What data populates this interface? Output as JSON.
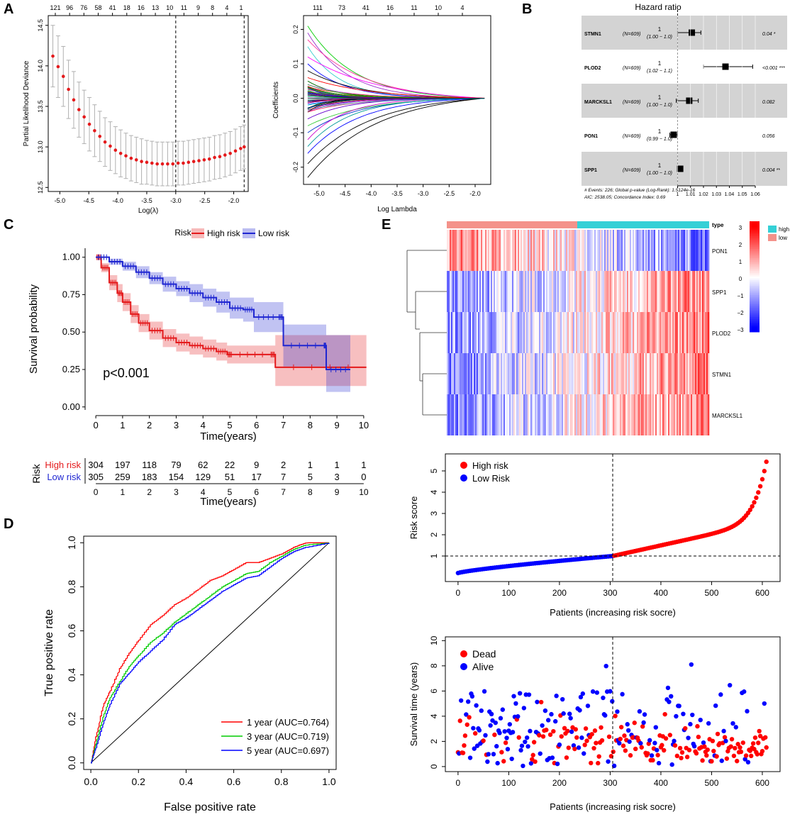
{
  "panels": {
    "A": "A",
    "B": "B",
    "C": "C",
    "D": "D",
    "E": "E"
  },
  "chart_data": [
    {
      "id": "A1",
      "type": "scatter",
      "title": "",
      "xlabel": "Log(λ)",
      "ylabel": "Partial Likelihood Deviance",
      "xlim": [
        -5.2,
        -1.75
      ],
      "ylim": [
        12.45,
        14.62
      ],
      "x_ticks": [
        "-5.0",
        "-4.5",
        "-4.0",
        "-3.5",
        "-3.0",
        "-2.5",
        "-2.0"
      ],
      "y_ticks": [
        "12.5",
        "13.0",
        "13.5",
        "14.0",
        "14.5"
      ],
      "top_ticks": [
        "121",
        "96",
        "76",
        "58",
        "41",
        "18",
        "16",
        "13",
        "10",
        "11",
        "9",
        "8",
        "4",
        "1"
      ],
      "vlines": [
        -3.0,
        -1.82
      ],
      "x": [
        -5.12,
        -5.03,
        -4.94,
        -4.85,
        -4.76,
        -4.67,
        -4.58,
        -4.49,
        -4.4,
        -4.31,
        -4.22,
        -4.13,
        -4.04,
        -3.95,
        -3.86,
        -3.77,
        -3.68,
        -3.59,
        -3.5,
        -3.41,
        -3.32,
        -3.23,
        -3.14,
        -3.05,
        -2.96,
        -2.87,
        -2.78,
        -2.69,
        -2.6,
        -2.51,
        -2.42,
        -2.33,
        -2.24,
        -2.15,
        -2.06,
        -1.97,
        -1.88,
        -1.82
      ],
      "values": [
        14.12,
        13.99,
        13.87,
        13.71,
        13.58,
        13.46,
        13.37,
        13.28,
        13.2,
        13.13,
        13.06,
        13.01,
        12.96,
        12.92,
        12.89,
        12.86,
        12.84,
        12.82,
        12.81,
        12.8,
        12.79,
        12.79,
        12.79,
        12.79,
        12.8,
        12.8,
        12.81,
        12.82,
        12.83,
        12.84,
        12.85,
        12.87,
        12.88,
        12.9,
        12.92,
        12.95,
        12.98,
        13.0
      ],
      "error": [
        0.38,
        0.38,
        0.37,
        0.36,
        0.35,
        0.34,
        0.33,
        0.33,
        0.32,
        0.31,
        0.3,
        0.3,
        0.29,
        0.29,
        0.28,
        0.28,
        0.28,
        0.28,
        0.27,
        0.27,
        0.27,
        0.27,
        0.27,
        0.27,
        0.27,
        0.27,
        0.27,
        0.27,
        0.27,
        0.27,
        0.27,
        0.27,
        0.27,
        0.27,
        0.27,
        0.27,
        0.27,
        0.27
      ],
      "color": "#e41a1c"
    },
    {
      "id": "A2",
      "type": "line",
      "xlabel": "Log Lambda",
      "ylabel": "Coefficients",
      "xlim": [
        -5.3,
        -1.7
      ],
      "ylim": [
        -0.25,
        0.24
      ],
      "x_ticks": [
        "-5.0",
        "-4.5",
        "-4.0",
        "-3.5",
        "-3.0",
        "-2.5",
        "-2.0"
      ],
      "y_ticks": [
        "-0.2",
        "-0.1",
        "0.0",
        "0.1",
        "0.2"
      ],
      "top_ticks": [
        "111",
        "73",
        "41",
        "16",
        "11",
        "10",
        "4"
      ],
      "x_end": -1.82,
      "series": [
        {
          "start": 0.21,
          "decay": 1.1,
          "color": "#00cc00"
        },
        {
          "start": 0.19,
          "decay": 1.3,
          "color": "#9933cc"
        },
        {
          "start": 0.17,
          "decay": 0.9,
          "color": "#ff3399"
        },
        {
          "start": 0.15,
          "decay": 1.6,
          "color": "#33cccc"
        },
        {
          "start": 0.12,
          "decay": 0.7,
          "color": "#ff00ff"
        },
        {
          "start": 0.1,
          "decay": 1.4,
          "color": "#0000ff"
        },
        {
          "start": 0.08,
          "decay": 1.0,
          "color": "#000000"
        },
        {
          "start": 0.06,
          "decay": 0.8,
          "color": "#ff0000"
        },
        {
          "start": 0.05,
          "decay": 1.8,
          "color": "#006600"
        },
        {
          "start": 0.04,
          "decay": 1.2,
          "color": "#cc66ff"
        },
        {
          "start": 0.03,
          "decay": 2.0,
          "color": "#ff9900"
        },
        {
          "start": 0.02,
          "decay": 1.5,
          "color": "#3366ff"
        },
        {
          "start": -0.02,
          "decay": 1.6,
          "color": "#00cccc"
        },
        {
          "start": -0.04,
          "decay": 1.1,
          "color": "#ff3366"
        },
        {
          "start": -0.06,
          "decay": 1.3,
          "color": "#6600cc"
        },
        {
          "start": -0.08,
          "decay": 0.9,
          "color": "#33cc33"
        },
        {
          "start": -0.1,
          "decay": 1.0,
          "color": "#0033cc"
        },
        {
          "start": -0.12,
          "decay": 1.4,
          "color": "#cc00cc"
        },
        {
          "start": -0.14,
          "decay": 1.2,
          "color": "#009999"
        },
        {
          "start": -0.16,
          "decay": 1.0,
          "color": "#0000ff"
        },
        {
          "start": -0.19,
          "decay": 0.8,
          "color": "#000000"
        },
        {
          "start": -0.23,
          "decay": 0.75,
          "color": "#000000"
        }
      ]
    },
    {
      "id": "B",
      "type": "table",
      "title": "Hazard ratio",
      "rows": [
        {
          "gene": "STMN1",
          "n": "(N=609)",
          "hr": "1",
          "ci": "(1.00 − 1.0)",
          "p": "0.04 *",
          "est": 1.011,
          "lo": 1.0,
          "hi": 1.018,
          "shade": true
        },
        {
          "gene": "PLOD2",
          "n": "(N=609)",
          "hr": "1",
          "ci": "(1.02 − 1.1)",
          "p": "<0.001 ***",
          "est": 1.037,
          "lo": 1.02,
          "hi": 1.058,
          "shade": false
        },
        {
          "gene": "MARCKSL1",
          "n": "(N=609)",
          "hr": "1",
          "ci": "(1.00 − 1.0)",
          "p": "0.082",
          "est": 1.009,
          "lo": 0.999,
          "hi": 1.016,
          "shade": true
        },
        {
          "gene": "PON1",
          "n": "(N=609)",
          "hr": "1",
          "ci": "(0.99 − 1.0)",
          "p": "0.056",
          "est": 0.997,
          "lo": 0.994,
          "hi": 1.0,
          "shade": false
        },
        {
          "gene": "SPP1",
          "n": "(N=609)",
          "hr": "1",
          "ci": "(1.00 − 1.0)",
          "p": "0.004 **",
          "est": 1.002,
          "lo": 1.001,
          "hi": 1.003,
          "shade": true
        }
      ],
      "x_ticks": [
        "1",
        "1.01",
        "1.02",
        "1.03",
        "1.04",
        "1.05",
        "1.06"
      ],
      "footer1": "# Events: 226; Global p-value (Log-Rank): 1.5124e-16",
      "footer2": "AIC: 2538.05; Concordance Index: 0.69"
    },
    {
      "id": "C",
      "type": "line",
      "title": "",
      "xlabel": "Time(years)",
      "ylabel": "Survival probability",
      "xlim": [
        -0.4,
        10.4
      ],
      "ylim": [
        -0.02,
        1.06
      ],
      "x_ticks": [
        "0",
        "1",
        "2",
        "3",
        "4",
        "5",
        "6",
        "7",
        "8",
        "9",
        "10"
      ],
      "y_ticks": [
        "0.00",
        "0.25",
        "0.50",
        "0.75",
        "1.00"
      ],
      "legend_title": "Risk",
      "legend": [
        "High risk",
        "Low risk"
      ],
      "annotation": "p<0.001",
      "series": [
        {
          "name": "High risk",
          "color": "#e41a1c",
          "x": [
            0,
            0.2,
            0.5,
            0.8,
            1,
            1.3,
            1.6,
            2,
            2.5,
            3,
            3.5,
            4,
            4.5,
            4.9,
            5.1,
            6.5,
            6.7,
            10.1
          ],
          "y": [
            1,
            0.93,
            0.83,
            0.76,
            0.7,
            0.62,
            0.56,
            0.51,
            0.46,
            0.43,
            0.41,
            0.39,
            0.37,
            0.35,
            0.35,
            0.35,
            0.265,
            0.265
          ],
          "lower": [
            1,
            0.9,
            0.78,
            0.7,
            0.64,
            0.56,
            0.5,
            0.45,
            0.4,
            0.37,
            0.35,
            0.33,
            0.31,
            0.29,
            0.29,
            0.29,
            0.14,
            0.14
          ],
          "upper": [
            1,
            0.96,
            0.88,
            0.82,
            0.76,
            0.68,
            0.62,
            0.57,
            0.52,
            0.49,
            0.47,
            0.45,
            0.43,
            0.41,
            0.41,
            0.41,
            0.48,
            0.48
          ]
        },
        {
          "name": "Low risk",
          "color": "#1f26d1",
          "x": [
            0,
            0.5,
            1,
            1.5,
            2,
            2.5,
            3,
            3.5,
            4,
            4.5,
            5,
            5.5,
            5.9,
            6.8,
            7.0,
            8.5,
            8.6,
            9.5
          ],
          "y": [
            1,
            0.97,
            0.94,
            0.9,
            0.86,
            0.82,
            0.79,
            0.76,
            0.73,
            0.7,
            0.66,
            0.65,
            0.6,
            0.6,
            0.41,
            0.41,
            0.25,
            0.25
          ],
          "lower": [
            1,
            0.95,
            0.91,
            0.86,
            0.82,
            0.77,
            0.74,
            0.7,
            0.67,
            0.63,
            0.59,
            0.57,
            0.5,
            0.5,
            0.27,
            0.27,
            0.1,
            0.1
          ],
          "upper": [
            1,
            0.99,
            0.97,
            0.94,
            0.9,
            0.87,
            0.84,
            0.82,
            0.79,
            0.77,
            0.73,
            0.73,
            0.7,
            0.7,
            0.55,
            0.55,
            0.48,
            0.48
          ]
        }
      ],
      "risk_table": {
        "label": "Risk",
        "xlabel": "Time(years)",
        "rows": [
          {
            "name": "High risk",
            "color": "#e41a1c",
            "values": [
              "304",
              "197",
              "118",
              "79",
              "62",
              "22",
              "9",
              "2",
              "1",
              "1",
              "1"
            ]
          },
          {
            "name": "Low risk",
            "color": "#1f26d1",
            "values": [
              "305",
              "259",
              "183",
              "154",
              "129",
              "51",
              "17",
              "7",
              "5",
              "3",
              "0"
            ]
          }
        ]
      }
    },
    {
      "id": "D",
      "type": "line",
      "xlabel": "False positive rate",
      "ylabel": "True positive rate",
      "xlim": [
        -0.03,
        1.03
      ],
      "ylim": [
        -0.03,
        1.03
      ],
      "x_ticks": [
        "0.0",
        "0.2",
        "0.4",
        "0.6",
        "0.8",
        "1.0"
      ],
      "y_ticks": [
        "0.0",
        "0.2",
        "0.4",
        "0.6",
        "0.8",
        "1.0"
      ],
      "series": [
        {
          "name": "1 year (AUC=0.764)",
          "color": "#ff0000",
          "x": [
            0,
            0.02,
            0.05,
            0.08,
            0.12,
            0.16,
            0.2,
            0.25,
            0.3,
            0.35,
            0.4,
            0.45,
            0.5,
            0.55,
            0.6,
            0.65,
            0.7,
            0.75,
            0.8,
            0.85,
            0.9,
            1
          ],
          "y": [
            0,
            0.12,
            0.26,
            0.33,
            0.43,
            0.5,
            0.56,
            0.63,
            0.67,
            0.72,
            0.75,
            0.79,
            0.83,
            0.85,
            0.88,
            0.91,
            0.91,
            0.93,
            0.95,
            0.98,
            1.0,
            1.0
          ]
        },
        {
          "name": "3 year (AUC=0.719)",
          "color": "#00cc00",
          "x": [
            0,
            0.02,
            0.05,
            0.08,
            0.12,
            0.16,
            0.2,
            0.25,
            0.3,
            0.35,
            0.4,
            0.45,
            0.5,
            0.55,
            0.6,
            0.65,
            0.7,
            0.75,
            0.8,
            0.85,
            0.9,
            1
          ],
          "y": [
            0,
            0.09,
            0.21,
            0.3,
            0.37,
            0.44,
            0.49,
            0.55,
            0.59,
            0.64,
            0.68,
            0.72,
            0.76,
            0.8,
            0.83,
            0.86,
            0.87,
            0.91,
            0.94,
            0.97,
            0.99,
            1.0
          ]
        },
        {
          "name": "5 year (AUC=0.697)",
          "color": "#0000ff",
          "x": [
            0,
            0.02,
            0.05,
            0.08,
            0.12,
            0.16,
            0.2,
            0.25,
            0.3,
            0.35,
            0.4,
            0.45,
            0.5,
            0.55,
            0.6,
            0.65,
            0.7,
            0.75,
            0.8,
            0.85,
            0.9,
            1
          ],
          "y": [
            0,
            0.07,
            0.18,
            0.27,
            0.36,
            0.41,
            0.46,
            0.51,
            0.56,
            0.63,
            0.66,
            0.7,
            0.74,
            0.78,
            0.81,
            0.84,
            0.85,
            0.89,
            0.93,
            0.96,
            0.98,
            1.0
          ]
        }
      ]
    },
    {
      "id": "E1",
      "type": "heatmap",
      "rows": [
        "PON1",
        "SPP1",
        "PLOD2",
        "STMN1",
        "MARCKSL1"
      ],
      "row_trend": [
        -1,
        1,
        1,
        1,
        1
      ],
      "n_patients": 609,
      "split": 304,
      "annotation_label": "type",
      "annotation_legend": [
        {
          "label": "high",
          "color": "#35d0d6"
        },
        {
          "label": "low",
          "color": "#f4928a"
        }
      ],
      "colorbar_ticks": [
        "3",
        "2",
        "1",
        "0",
        "−1",
        "−2",
        "−3"
      ]
    },
    {
      "id": "E2",
      "type": "scatter",
      "xlabel": "Patients (increasing risk socre)",
      "ylabel": "Risk score",
      "xlim": [
        -25,
        635
      ],
      "ylim": [
        -0.2,
        5.8
      ],
      "x_ticks": [
        "0",
        "100",
        "200",
        "300",
        "400",
        "500",
        "600"
      ],
      "y_ticks": [
        "1",
        "2",
        "3",
        "4",
        "5"
      ],
      "cutoff_x": 305,
      "cutoff_y": 1,
      "legend": [
        {
          "label": "High risk",
          "color": "#ff0000"
        },
        {
          "label": "Low Risk",
          "color": "#0000ff"
        }
      ],
      "n": 609,
      "min": 0.2,
      "cutoff": 1.0,
      "max": 5.55
    },
    {
      "id": "E3",
      "type": "scatter",
      "xlabel": "Patients (increasing risk socre)",
      "ylabel": "Survival time (years)",
      "xlim": [
        -25,
        635
      ],
      "ylim": [
        -0.4,
        10.3
      ],
      "x_ticks": [
        "0",
        "100",
        "200",
        "300",
        "400",
        "500",
        "600"
      ],
      "y_ticks": [
        "0",
        "2",
        "4",
        "6",
        "8",
        "10"
      ],
      "cutoff_x": 305,
      "legend": [
        {
          "label": "Dead",
          "color": "#ff0000"
        },
        {
          "label": "Alive",
          "color": "#0000ff"
        }
      ],
      "n": 609
    }
  ]
}
